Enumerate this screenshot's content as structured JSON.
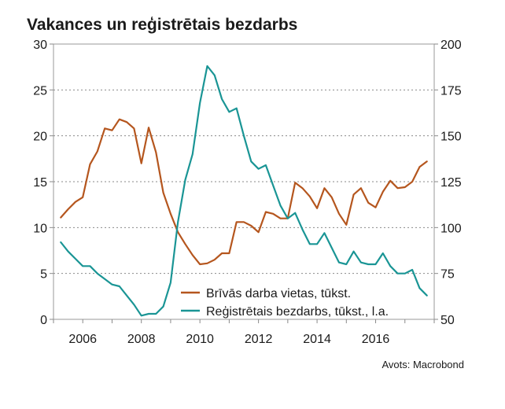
{
  "chart_data": {
    "type": "line",
    "title": "Vakances un reģistrētais bezdarbs",
    "source": "Avots: Macrobond",
    "x_ticks": [
      "2006",
      "2008",
      "2010",
      "2012",
      "2014",
      "2016"
    ],
    "x_range": [
      2005.0,
      2018.0
    ],
    "y_left": {
      "range": [
        0,
        30
      ],
      "ticks": [
        "0",
        "5",
        "10",
        "15",
        "20",
        "25",
        "30"
      ]
    },
    "y_right": {
      "range": [
        50,
        200
      ],
      "ticks": [
        "50",
        "75",
        "100",
        "125",
        "150",
        "175",
        "200"
      ]
    },
    "grid": "horizontal dotted",
    "legend_placement": "bottom-center",
    "series": [
      {
        "name": "Brīvās darba vietas, tūkst.",
        "axis": "left",
        "color": "#b5561e",
        "x": [
          2005.25,
          2005.5,
          2005.75,
          2006.0,
          2006.25,
          2006.5,
          2006.75,
          2007.0,
          2007.25,
          2007.5,
          2007.75,
          2008.0,
          2008.25,
          2008.5,
          2008.75,
          2009.0,
          2009.25,
          2009.5,
          2009.75,
          2010.0,
          2010.25,
          2010.5,
          2010.75,
          2011.0,
          2011.25,
          2011.5,
          2011.75,
          2012.0,
          2012.25,
          2012.5,
          2012.75,
          2013.0,
          2013.25,
          2013.5,
          2013.75,
          2014.0,
          2014.25,
          2014.5,
          2014.75,
          2015.0,
          2015.25,
          2015.5,
          2015.75,
          2016.0,
          2016.25,
          2016.5,
          2016.75,
          2017.0,
          2017.25,
          2017.5,
          2017.75
        ],
        "values": [
          11.1,
          12.0,
          12.8,
          13.3,
          16.9,
          18.3,
          20.8,
          20.6,
          21.8,
          21.5,
          20.8,
          17.0,
          20.9,
          18.2,
          13.8,
          11.5,
          9.5,
          8.2,
          7.0,
          6.0,
          6.1,
          6.5,
          7.2,
          7.2,
          10.6,
          10.6,
          10.2,
          9.5,
          11.7,
          11.5,
          11.0,
          11.0,
          14.9,
          14.3,
          13.4,
          12.1,
          14.3,
          13.3,
          11.5,
          10.3,
          13.6,
          14.3,
          12.7,
          12.2,
          13.9,
          15.1,
          14.3,
          14.4,
          15.0,
          16.6,
          17.2
        ]
      },
      {
        "name": "Reģistrētais bezdarbs, tūkst., l.a.",
        "axis": "right",
        "color": "#1a9595",
        "x": [
          2005.25,
          2005.5,
          2005.75,
          2006.0,
          2006.25,
          2006.5,
          2006.75,
          2007.0,
          2007.25,
          2007.5,
          2007.75,
          2008.0,
          2008.25,
          2008.5,
          2008.75,
          2009.0,
          2009.25,
          2009.5,
          2009.75,
          2010.0,
          2010.25,
          2010.5,
          2010.75,
          2011.0,
          2011.25,
          2011.5,
          2011.75,
          2012.0,
          2012.25,
          2012.5,
          2012.75,
          2013.0,
          2013.25,
          2013.5,
          2013.75,
          2014.0,
          2014.25,
          2014.5,
          2014.75,
          2015.0,
          2015.25,
          2015.5,
          2015.75,
          2016.0,
          2016.25,
          2016.5,
          2016.75,
          2017.0,
          2017.25,
          2017.5,
          2017.75
        ],
        "values": [
          92,
          87,
          83,
          79,
          79,
          75,
          72,
          69,
          68,
          63,
          58,
          52,
          53,
          53,
          57,
          70,
          103,
          126,
          140,
          168,
          188,
          183,
          170,
          163,
          165,
          150,
          136,
          132,
          134,
          123,
          112,
          105,
          108,
          99,
          91,
          91,
          97,
          89,
          81,
          80,
          87,
          81,
          80,
          80,
          86,
          79,
          75,
          75,
          77,
          67,
          63
        ]
      }
    ]
  }
}
